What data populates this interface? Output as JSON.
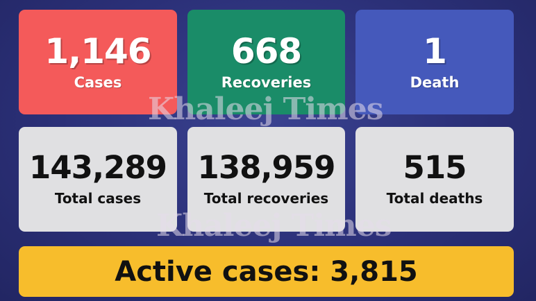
{
  "daily": [
    {
      "value": "1,146",
      "label": "Cases",
      "color": "#f45a5a"
    },
    {
      "value": "668",
      "label": "Recoveries",
      "color": "#1a8c68"
    },
    {
      "value": "1",
      "label": "Death",
      "color": "#4559bb"
    }
  ],
  "totals": [
    {
      "value": "143,289",
      "label": "Total cases"
    },
    {
      "value": "138,959",
      "label": "Total recoveries"
    },
    {
      "value": "515",
      "label": "Total deaths"
    }
  ],
  "active": {
    "text": "Active cases: 3,815",
    "color": "#f7bd2c"
  },
  "watermark": "Khaleej Times"
}
